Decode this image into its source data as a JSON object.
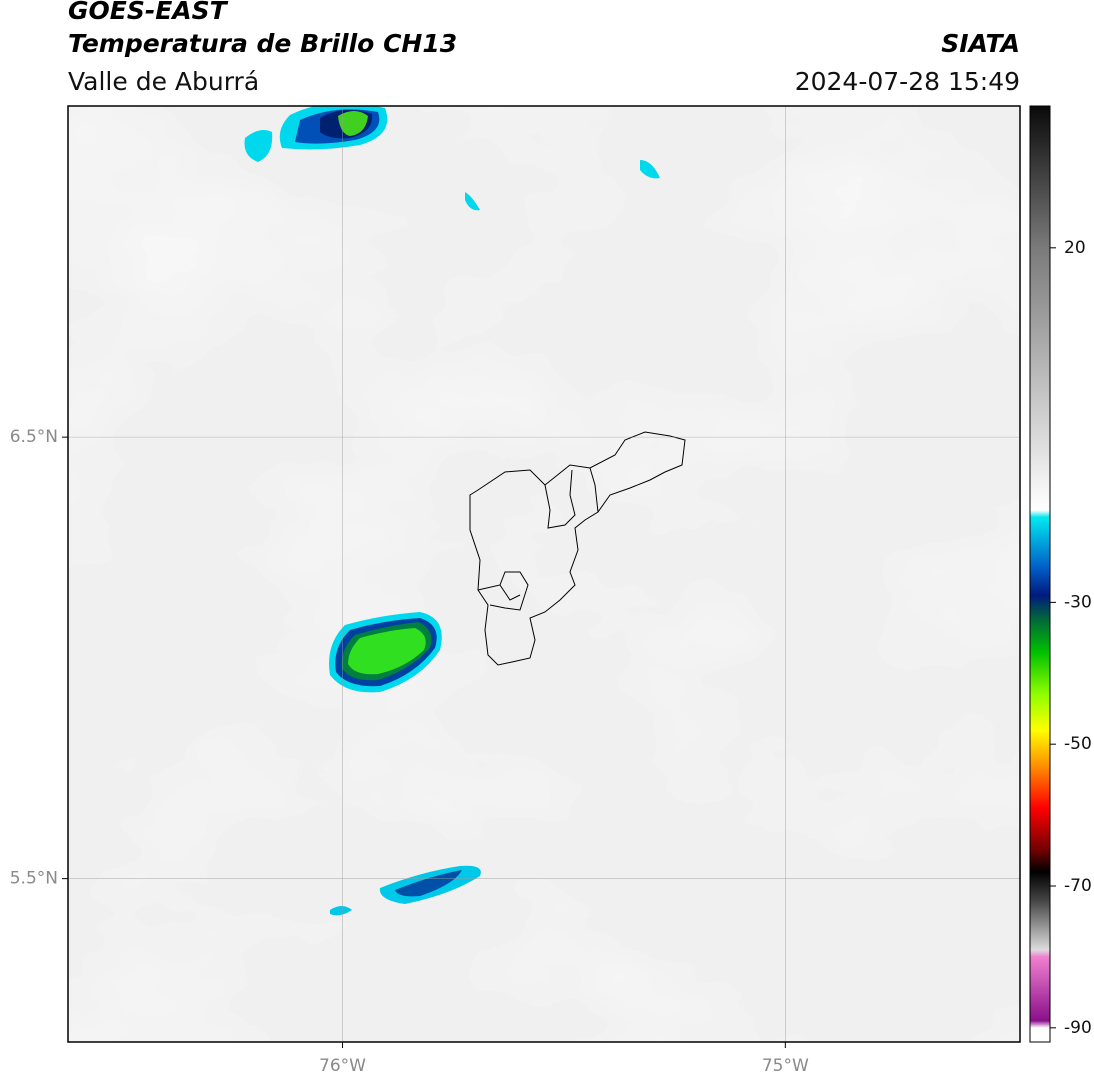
{
  "header": {
    "title": "GOES-EAST",
    "subtitle": "Temperatura de Brillo CH13",
    "region": "Valle de Aburrá",
    "source": "SIATA",
    "datetime": "2024-07-28 15:49"
  },
  "map": {
    "xlim": [
      -76.62,
      -74.47
    ],
    "ylim": [
      5.13,
      7.25
    ],
    "xticks": [
      {
        "value": -76,
        "label": "76°W"
      },
      {
        "value": -75,
        "label": "75°W"
      }
    ],
    "yticks": [
      {
        "value": 6.5,
        "label": "6.5°N"
      },
      {
        "value": 5.5,
        "label": "5.5°N"
      }
    ],
    "grid": true
  },
  "colorbar": {
    "range": [
      -92,
      40
    ],
    "ticks": [
      20,
      -30,
      -50,
      -70,
      -90
    ],
    "stops": [
      {
        "value": 40,
        "color": "#0a0a0a"
      },
      {
        "value": 20,
        "color": "#7a7a7a"
      },
      {
        "value": -17,
        "color": "#ffffff"
      },
      {
        "value": -18,
        "color": "#00e8f0"
      },
      {
        "value": -25,
        "color": "#0060c8"
      },
      {
        "value": -29,
        "color": "#001a80"
      },
      {
        "value": -32,
        "color": "#006040"
      },
      {
        "value": -37,
        "color": "#00c000"
      },
      {
        "value": -43,
        "color": "#90ff00"
      },
      {
        "value": -48,
        "color": "#ffff00"
      },
      {
        "value": -53,
        "color": "#ff9000"
      },
      {
        "value": -59,
        "color": "#ff0000"
      },
      {
        "value": -65,
        "color": "#700000"
      },
      {
        "value": -68,
        "color": "#000000"
      },
      {
        "value": -72,
        "color": "#444444"
      },
      {
        "value": -79,
        "color": "#dddddd"
      },
      {
        "value": -80,
        "color": "#f080d0"
      },
      {
        "value": -89,
        "color": "#8a108a"
      },
      {
        "value": -90,
        "color": "#ffffff"
      },
      {
        "value": -92,
        "color": "#ffffff"
      }
    ]
  }
}
